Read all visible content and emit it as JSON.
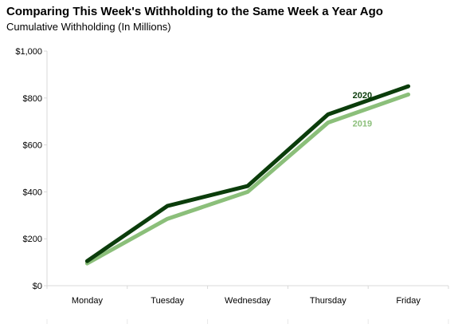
{
  "chart_data": {
    "type": "line",
    "title": "Comparing This Week's Withholding to the Same Week a Year Ago",
    "subtitle": "Cumulative Withholding (In Millions)",
    "xlabel": "",
    "ylabel": "",
    "categories": [
      "Monday",
      "Tuesday",
      "Wednesday",
      "Thursday",
      "Friday"
    ],
    "yticks": [
      "$0",
      "$200",
      "$400",
      "$600",
      "$800",
      "$1,000"
    ],
    "ylim": [
      0,
      1000
    ],
    "grid": false,
    "series": [
      {
        "name": "2019",
        "values": [
          95,
          285,
          400,
          695,
          815
        ],
        "color": "#8bbf7a"
      },
      {
        "name": "2020",
        "values": [
          105,
          340,
          425,
          730,
          850
        ],
        "color": "#0b3d0b"
      }
    ]
  }
}
